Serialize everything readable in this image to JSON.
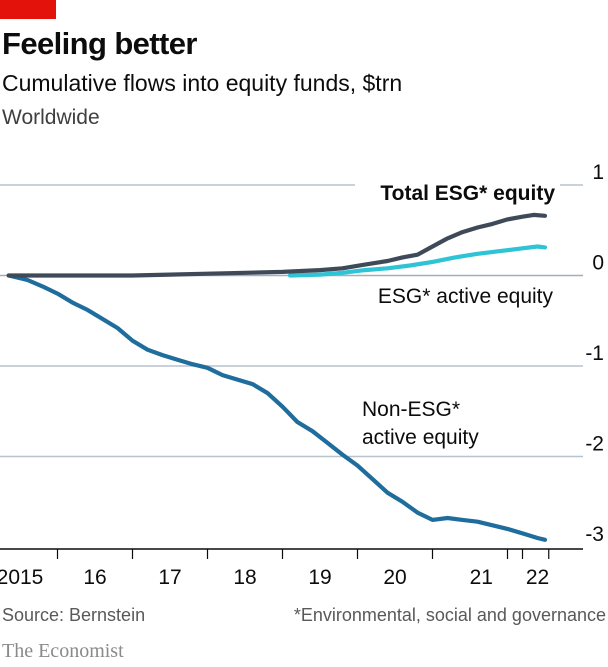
{
  "header": {
    "title": "Feeling better",
    "subtitle": "Cumulative flows into equity funds, $trn",
    "region": "Worldwide"
  },
  "footer": {
    "source": "Source: Bernstein",
    "footnote": "*Environmental, social and governance",
    "brand": "The Economist"
  },
  "colors": {
    "accent": "#e3120b",
    "total_esg": "#3e4a57",
    "esg_active": "#2ec4d6",
    "non_esg_active": "#1f6d9c",
    "gridline": "#b7c4cf",
    "baseline": "#0c0c0c"
  },
  "chart_data": {
    "type": "line",
    "ylim": [
      -3,
      1
    ],
    "y_ticks": [
      1,
      0,
      -1,
      -2,
      -3
    ],
    "y_tick_labels": [
      "1",
      "0",
      "-1",
      "-2",
      "-3"
    ],
    "x_range": [
      2014.8,
      2022.2
    ],
    "x_ticks": [
      2015,
      2016,
      2017,
      2018,
      2019,
      2020,
      2021,
      2022
    ],
    "x_tick_labels": [
      "2015",
      "16",
      "17",
      "18",
      "19",
      "20",
      "21",
      "22"
    ],
    "grid": true,
    "series": [
      {
        "name": "Total ESG* equity",
        "color": "#3e4a57",
        "label_bold": true,
        "points": [
          [
            2014.85,
            0.0
          ],
          [
            2015.5,
            0.0
          ],
          [
            2016.0,
            0.0
          ],
          [
            2016.5,
            0.0
          ],
          [
            2017.0,
            0.01
          ],
          [
            2017.5,
            0.02
          ],
          [
            2018.0,
            0.03
          ],
          [
            2018.5,
            0.04
          ],
          [
            2019.0,
            0.06
          ],
          [
            2019.3,
            0.08
          ],
          [
            2019.6,
            0.12
          ],
          [
            2019.9,
            0.16
          ],
          [
            2020.1,
            0.2
          ],
          [
            2020.3,
            0.23
          ],
          [
            2020.5,
            0.32
          ],
          [
            2020.7,
            0.41
          ],
          [
            2020.9,
            0.48
          ],
          [
            2021.1,
            0.53
          ],
          [
            2021.3,
            0.57
          ],
          [
            2021.5,
            0.62
          ],
          [
            2021.7,
            0.65
          ],
          [
            2021.85,
            0.67
          ],
          [
            2022.0,
            0.66
          ]
        ]
      },
      {
        "name": "ESG* active equity",
        "color": "#2ec4d6",
        "label_bold": false,
        "points": [
          [
            2018.6,
            0.0
          ],
          [
            2019.0,
            0.01
          ],
          [
            2019.3,
            0.03
          ],
          [
            2019.6,
            0.06
          ],
          [
            2019.9,
            0.08
          ],
          [
            2020.2,
            0.11
          ],
          [
            2020.5,
            0.15
          ],
          [
            2020.8,
            0.2
          ],
          [
            2021.1,
            0.24
          ],
          [
            2021.4,
            0.27
          ],
          [
            2021.7,
            0.3
          ],
          [
            2021.9,
            0.32
          ],
          [
            2022.0,
            0.31
          ]
        ]
      },
      {
        "name": "Non-ESG*\nactive equity",
        "color": "#1f6d9c",
        "label_bold": false,
        "points": [
          [
            2014.85,
            0.0
          ],
          [
            2015.1,
            -0.05
          ],
          [
            2015.3,
            -0.12
          ],
          [
            2015.5,
            -0.2
          ],
          [
            2015.7,
            -0.3
          ],
          [
            2015.9,
            -0.38
          ],
          [
            2016.1,
            -0.48
          ],
          [
            2016.3,
            -0.58
          ],
          [
            2016.5,
            -0.72
          ],
          [
            2016.7,
            -0.82
          ],
          [
            2016.9,
            -0.88
          ],
          [
            2017.1,
            -0.93
          ],
          [
            2017.3,
            -0.98
          ],
          [
            2017.5,
            -1.02
          ],
          [
            2017.7,
            -1.1
          ],
          [
            2017.9,
            -1.15
          ],
          [
            2018.1,
            -1.2
          ],
          [
            2018.3,
            -1.3
          ],
          [
            2018.5,
            -1.45
          ],
          [
            2018.7,
            -1.62
          ],
          [
            2018.9,
            -1.72
          ],
          [
            2019.1,
            -1.85
          ],
          [
            2019.3,
            -1.98
          ],
          [
            2019.5,
            -2.1
          ],
          [
            2019.7,
            -2.25
          ],
          [
            2019.9,
            -2.4
          ],
          [
            2020.1,
            -2.5
          ],
          [
            2020.3,
            -2.62
          ],
          [
            2020.5,
            -2.7
          ],
          [
            2020.7,
            -2.68
          ],
          [
            2020.9,
            -2.7
          ],
          [
            2021.1,
            -2.72
          ],
          [
            2021.3,
            -2.76
          ],
          [
            2021.5,
            -2.8
          ],
          [
            2021.7,
            -2.85
          ],
          [
            2021.9,
            -2.9
          ],
          [
            2022.0,
            -2.92
          ]
        ]
      }
    ]
  }
}
